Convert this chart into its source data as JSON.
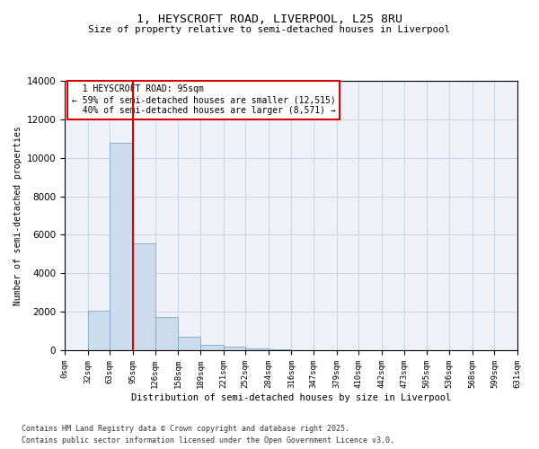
{
  "title1": "1, HEYSCROFT ROAD, LIVERPOOL, L25 8RU",
  "title2": "Size of property relative to semi-detached houses in Liverpool",
  "xlabel": "Distribution of semi-detached houses by size in Liverpool",
  "ylabel": "Number of semi-detached properties",
  "property_size": 95,
  "property_label": "1 HEYSCROFT ROAD: 95sqm",
  "annotation_line": "← 59% of semi-detached houses are smaller (12,515)",
  "annotation_line2": "40% of semi-detached houses are larger (8,571) →",
  "bins": [
    0,
    32,
    63,
    95,
    126,
    158,
    189,
    221,
    252,
    284,
    316,
    347,
    379,
    410,
    442,
    473,
    505,
    536,
    568,
    599,
    631
  ],
  "counts": [
    0,
    2050,
    10800,
    5550,
    1750,
    700,
    280,
    175,
    100,
    50,
    0,
    0,
    0,
    0,
    0,
    0,
    0,
    0,
    0,
    0
  ],
  "bar_color": "#ccdcec",
  "bar_edge_color": "#7baac8",
  "red_line_color": "#dd0000",
  "box_edge_color": "#dd0000",
  "grid_color": "#c8d4e4",
  "background_color": "#eef2f8",
  "footer_line1": "Contains HM Land Registry data © Crown copyright and database right 2025.",
  "footer_line2": "Contains public sector information licensed under the Open Government Licence v3.0.",
  "ylim": [
    0,
    14000
  ],
  "yticks": [
    0,
    2000,
    4000,
    6000,
    8000,
    10000,
    12000,
    14000
  ]
}
